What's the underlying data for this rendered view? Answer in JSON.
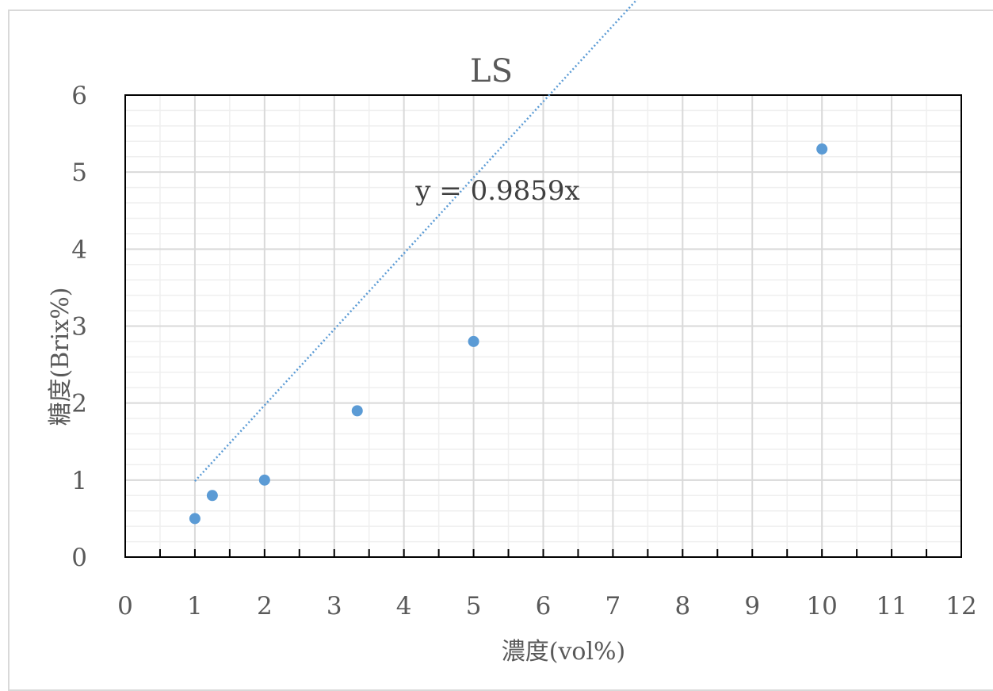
{
  "chart_data": {
    "type": "scatter",
    "title": "LS",
    "xlabel": "濃度(vol%)",
    "ylabel": "糖度(Brix%)",
    "xlim": [
      0,
      12
    ],
    "ylim": [
      0,
      6
    ],
    "x_ticks": [
      "0",
      "1",
      "2",
      "3",
      "4",
      "5",
      "6",
      "7",
      "8",
      "9",
      "10",
      "11",
      "12"
    ],
    "y_ticks": [
      "0",
      "1",
      "2",
      "3",
      "4",
      "5",
      "6"
    ],
    "grid": true,
    "legend": "none",
    "series": [
      {
        "points": [
          {
            "x": 1,
            "y": 0.5
          },
          {
            "x": 1.25,
            "y": 0.8
          },
          {
            "x": 2,
            "y": 1.0
          },
          {
            "x": 3.33,
            "y": 1.9
          },
          {
            "x": 5,
            "y": 2.8
          },
          {
            "x": 10,
            "y": 5.3
          }
        ],
        "color": "#5b9bd5"
      }
    ],
    "trendline": {
      "equation": "y = 0.9859x",
      "slope": 0.9859,
      "x_range": [
        1,
        10
      ],
      "style": "dotted",
      "color": "#5b9bd5"
    }
  }
}
